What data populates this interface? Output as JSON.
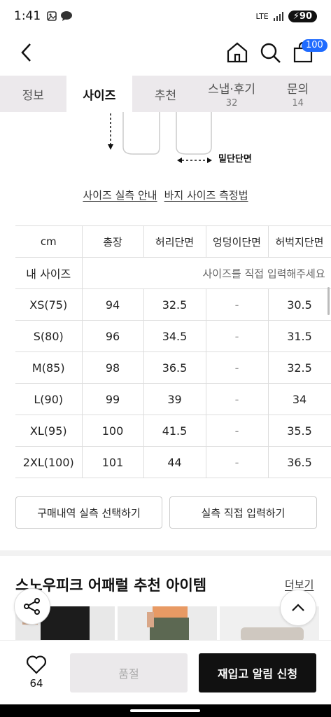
{
  "status": {
    "time": "1:41",
    "network": "LTE",
    "battery": "90"
  },
  "header": {
    "cart_count": "100"
  },
  "tabs": [
    {
      "label": "정보",
      "sub": ""
    },
    {
      "label": "사이즈",
      "sub": ""
    },
    {
      "label": "추천",
      "sub": ""
    },
    {
      "label": "스냅·후기",
      "sub": "32"
    },
    {
      "label": "문의",
      "sub": "14"
    }
  ],
  "illustration": {
    "label": "밑단단면"
  },
  "links": {
    "guide": "사이즈 실측 안내",
    "measure": "바지 사이즈 측정법"
  },
  "table": {
    "headers": [
      "cm",
      "총장",
      "허리단면",
      "엉덩이단면",
      "허벅지단면"
    ],
    "my_size_label": "내 사이즈",
    "my_size_hint": "사이즈를 직접 입력해주세요",
    "rows": [
      [
        "XS(75)",
        "94",
        "32.5",
        "-",
        "30.5"
      ],
      [
        "S(80)",
        "96",
        "34.5",
        "-",
        "31.5"
      ],
      [
        "M(85)",
        "98",
        "36.5",
        "-",
        "32.5"
      ],
      [
        "L(90)",
        "99",
        "39",
        "-",
        "34"
      ],
      [
        "XL(95)",
        "100",
        "41.5",
        "-",
        "35.5"
      ],
      [
        "2XL(100)",
        "101",
        "44",
        "-",
        "36.5"
      ]
    ]
  },
  "buttons": {
    "purchase": "구매내역 실측 선택하기",
    "manual": "실측 직접 입력하기"
  },
  "recommend": {
    "title": "스노우피크 어패럴 추천 아이템",
    "more": "더보기"
  },
  "bottom": {
    "likes": "64",
    "soldout": "품절",
    "restock": "재입고 알림 신청"
  },
  "colors": {
    "tab_bg": "#ece9ec",
    "badge": "#1f6bff",
    "primary": "#111111"
  }
}
